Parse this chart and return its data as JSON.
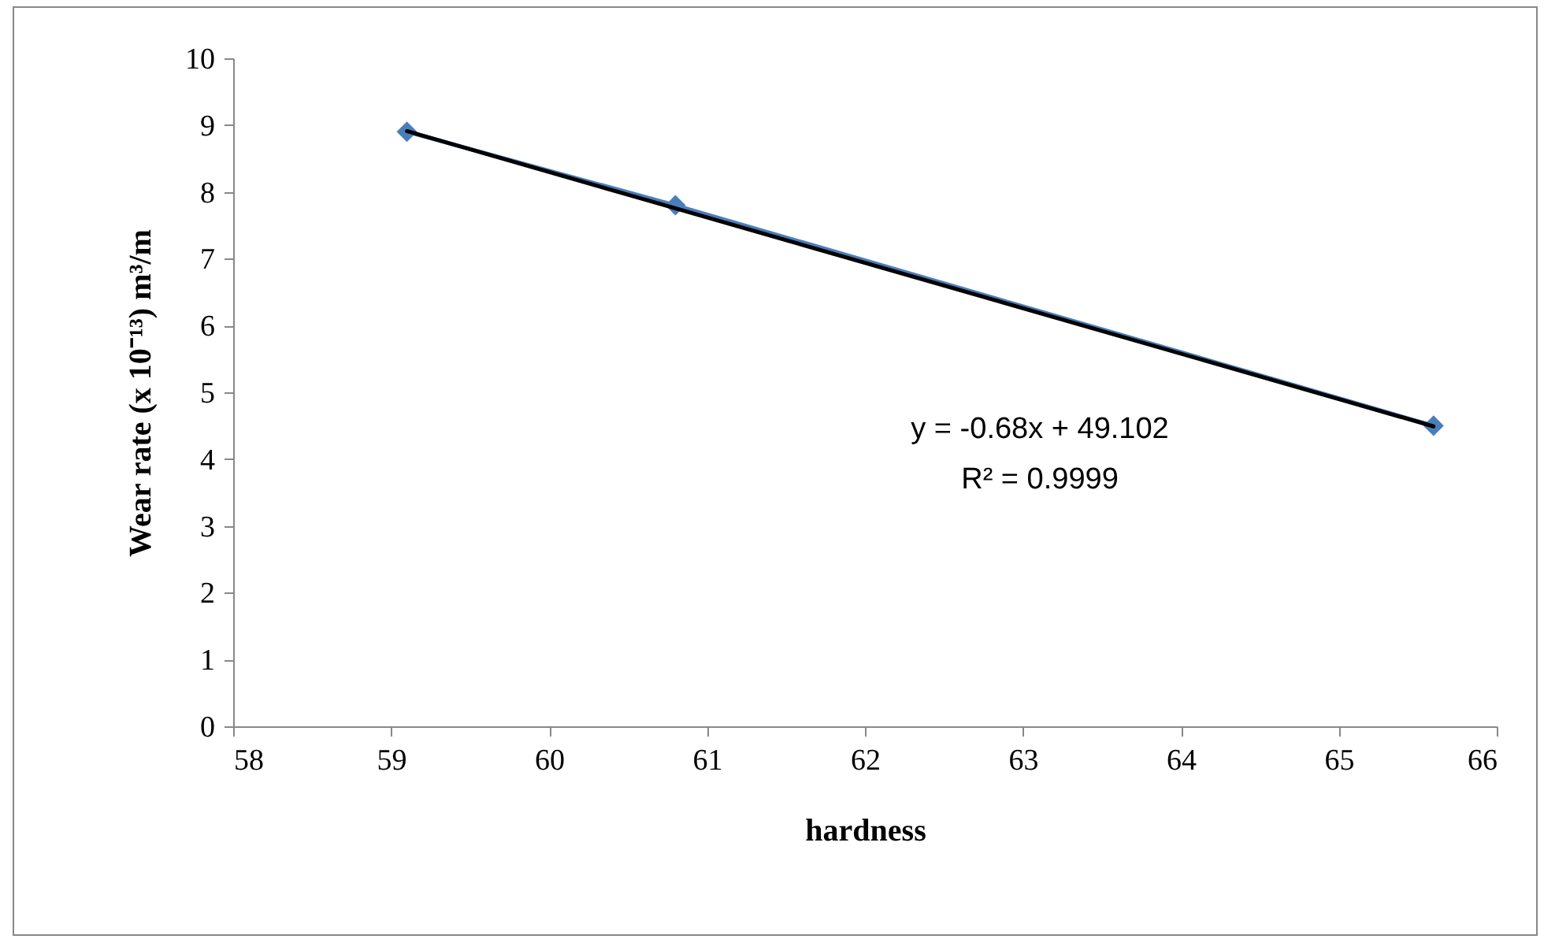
{
  "chart_data": {
    "type": "line",
    "xlabel": "hardness",
    "ylabel": "Wear rate (x 10⁻¹³) m³/m",
    "xlim": [
      58,
      66
    ],
    "xticks": [
      58,
      59,
      60,
      61,
      62,
      63,
      64,
      65,
      66
    ],
    "ylim": [
      0,
      10
    ],
    "yticks": [
      0,
      1,
      2,
      3,
      4,
      5,
      6,
      7,
      8,
      9,
      10
    ],
    "grid": false,
    "marker": "diamond",
    "series": [
      {
        "color": "#4a7ebb",
        "x": [
          59.1,
          60.8,
          65.6
        ],
        "values": [
          8.9,
          7.8,
          4.5
        ]
      },
      {
        "color": "#000000",
        "x": [
          59.1,
          65.6
        ],
        "values": [
          8.91,
          4.49
        ],
        "marker": "none"
      }
    ],
    "annotations": [
      "y = -0.68x + 49.102",
      "R² = 0.9999"
    ]
  }
}
